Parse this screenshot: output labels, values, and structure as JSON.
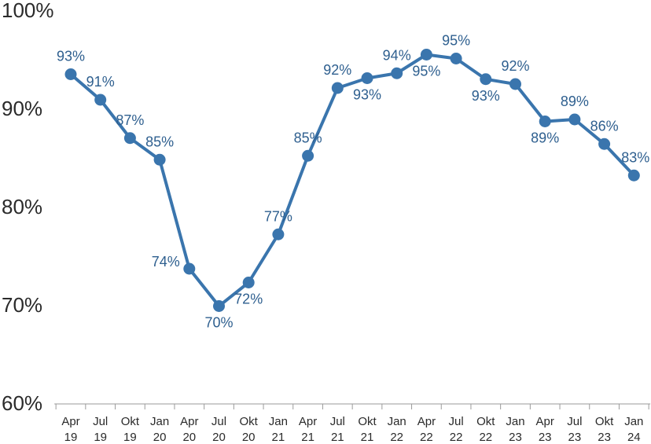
{
  "chart_data": {
    "type": "line",
    "title": "",
    "xlabel": "",
    "ylabel": "",
    "ylim": [
      60,
      100
    ],
    "y_ticks": [
      "60%",
      "70%",
      "80%",
      "90%",
      "100%"
    ],
    "grid": false,
    "color": "#3a75ad",
    "categories": [
      [
        "Apr",
        "19"
      ],
      [
        "Jul",
        "19"
      ],
      [
        "Okt",
        "19"
      ],
      [
        "Jan",
        "20"
      ],
      [
        "Apr",
        "20"
      ],
      [
        "Jul",
        "20"
      ],
      [
        "Okt",
        "20"
      ],
      [
        "Jan",
        "21"
      ],
      [
        "Apr",
        "21"
      ],
      [
        "Jul",
        "21"
      ],
      [
        "Okt",
        "21"
      ],
      [
        "Jan",
        "22"
      ],
      [
        "Apr",
        "22"
      ],
      [
        "Jul",
        "22"
      ],
      [
        "Okt",
        "22"
      ],
      [
        "Jan",
        "23"
      ],
      [
        "Apr",
        "23"
      ],
      [
        "Jul",
        "23"
      ],
      [
        "Okt",
        "23"
      ],
      [
        "Jan",
        "24"
      ]
    ],
    "series": [
      {
        "values": [
          93.4,
          90.8,
          86.9,
          84.7,
          73.6,
          69.8,
          72.2,
          77.1,
          85.1,
          92.0,
          93.0,
          93.5,
          95.4,
          95.0,
          92.9,
          92.4,
          88.6,
          88.8,
          86.3,
          83.1
        ],
        "labels": [
          "93%",
          "91%",
          "87%",
          "85%",
          "74%",
          "70%",
          "72%",
          "77%",
          "85%",
          "92%",
          "93%",
          "94%",
          "95%",
          "95%",
          "93%",
          "92%",
          "89%",
          "89%",
          "86%",
          "83%"
        ]
      }
    ]
  }
}
